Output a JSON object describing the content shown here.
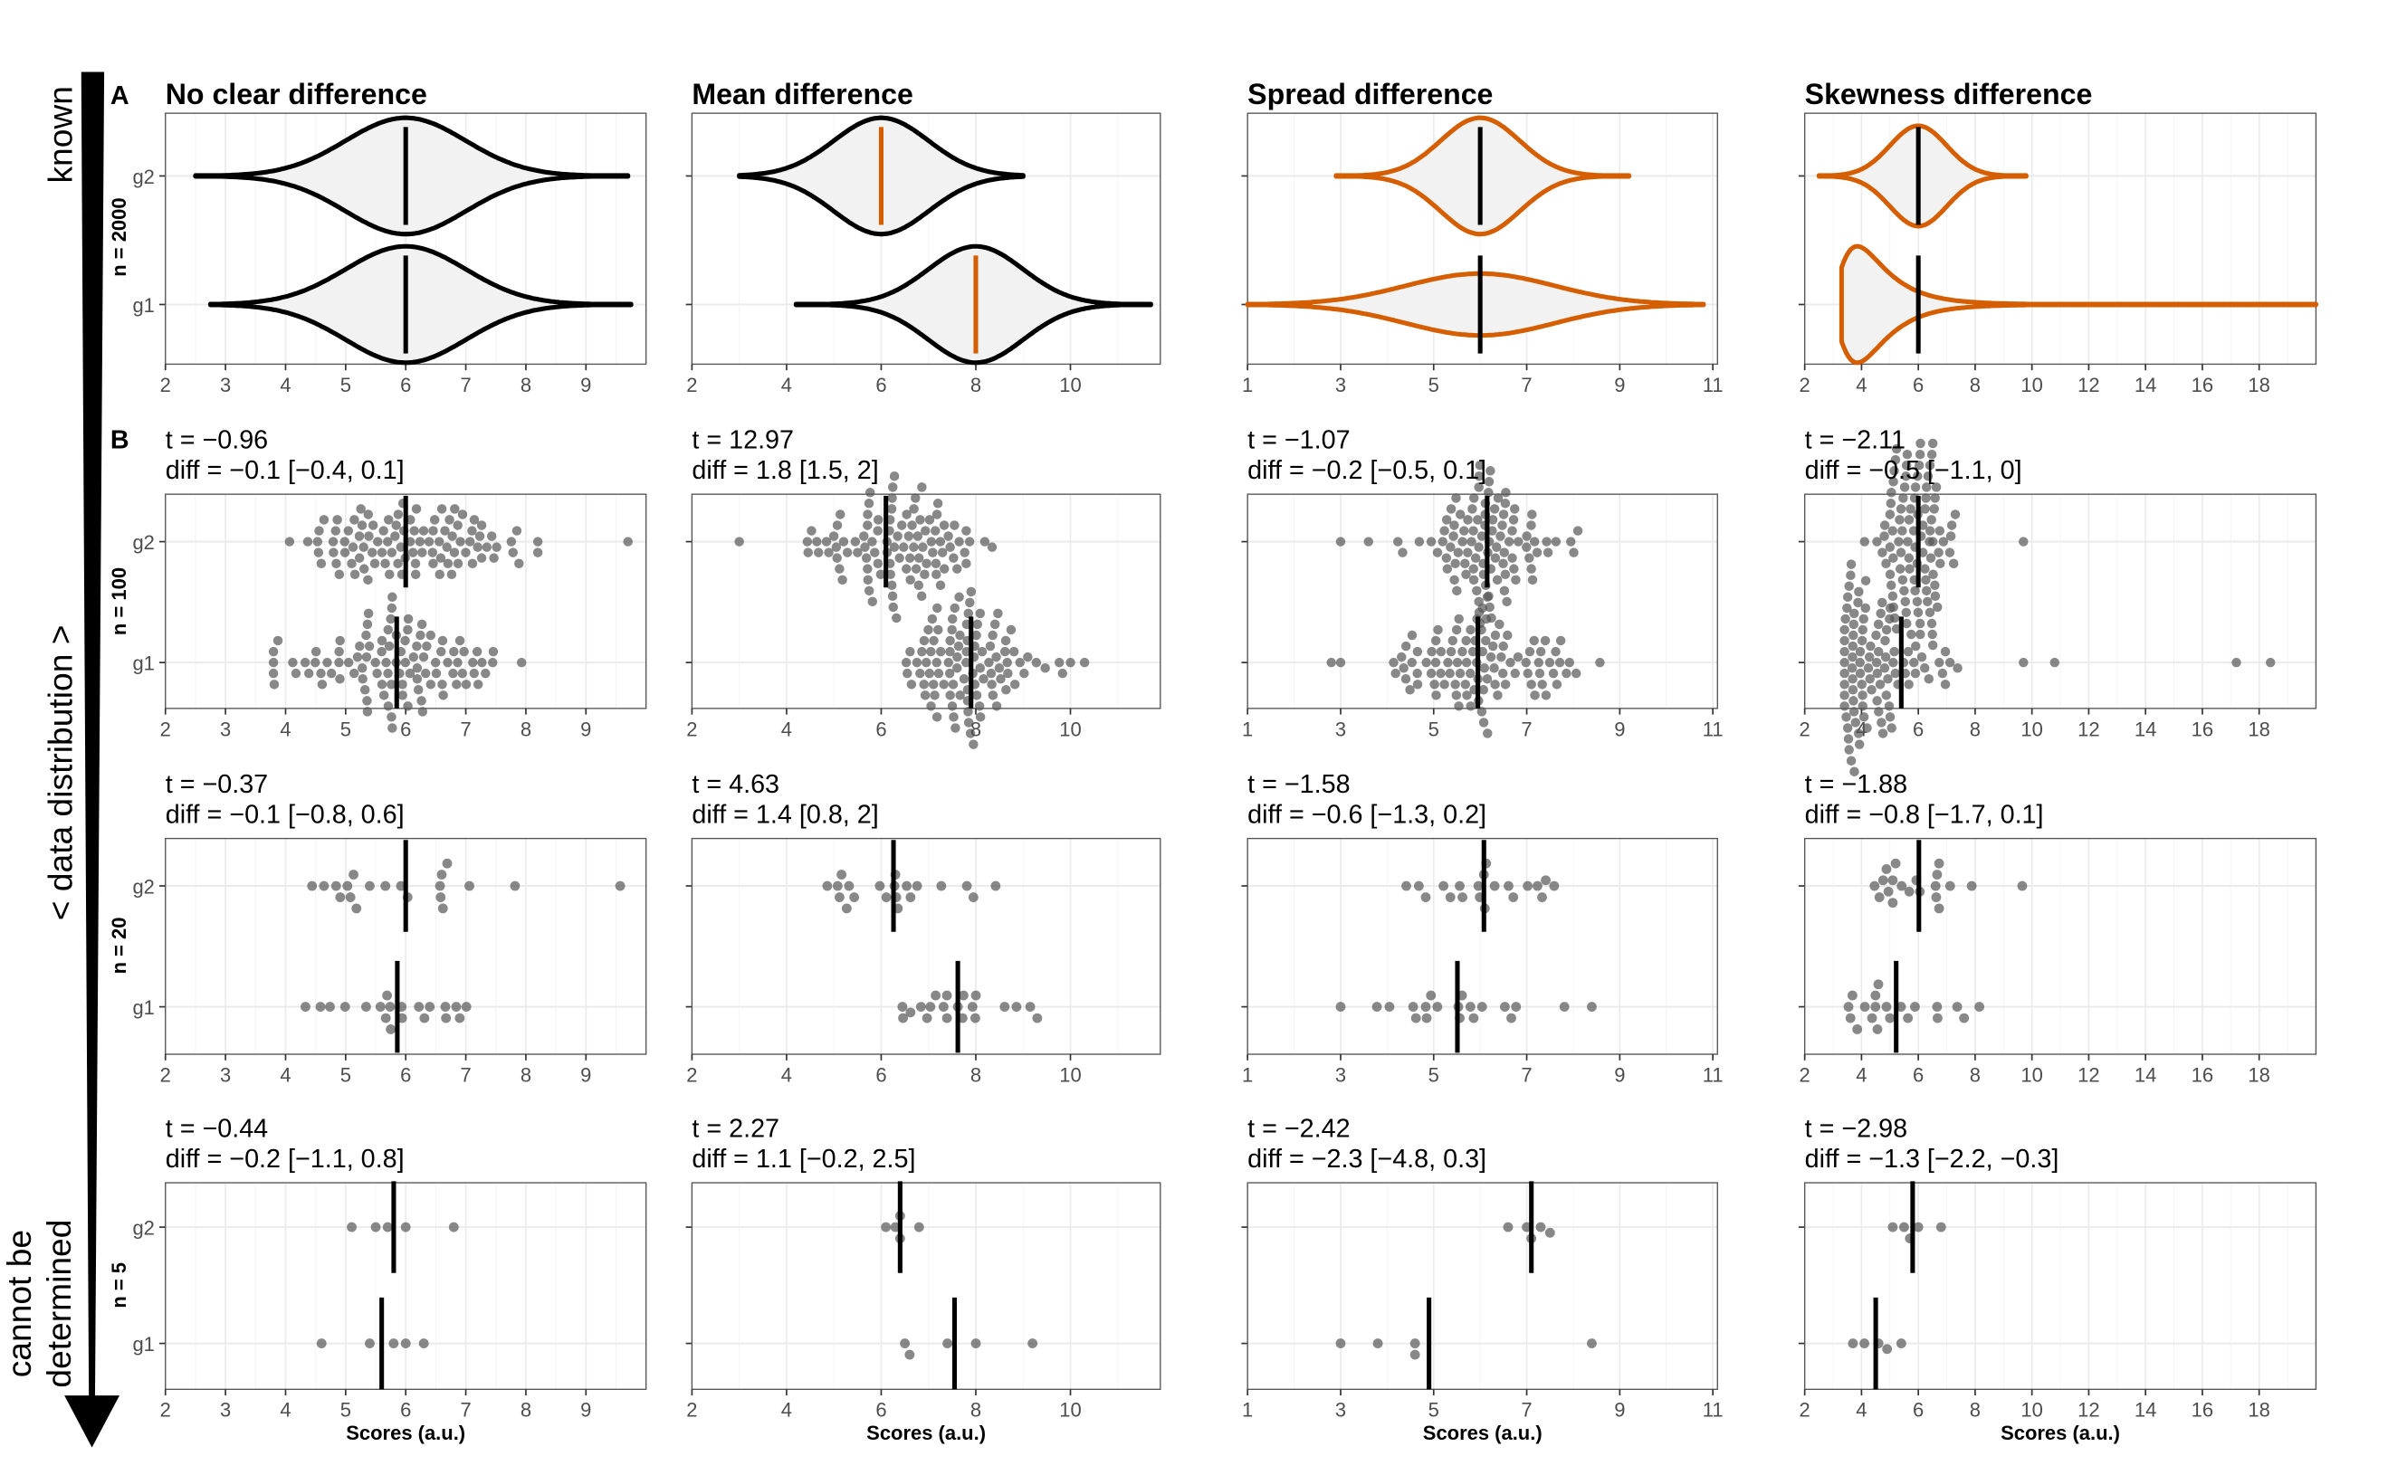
{
  "figure": {
    "side_axis": {
      "top": "known",
      "middle": "< data distribution >",
      "bottom_line1": "cannot be",
      "bottom_line2": "determined"
    },
    "panel_labels": [
      "A",
      "B"
    ],
    "x_axis_label": "Scores (a.u.)",
    "group_labels": [
      "g2",
      "g1"
    ],
    "colors": {
      "orange": "#D55E00",
      "black": "#000000",
      "violin_fill": "#F2F2F2",
      "point": "#555555"
    }
  },
  "chart_data": {
    "type": "violin + beeswarm",
    "rows": [
      {
        "label": "n = 2000",
        "kind": "violin"
      },
      {
        "label": "n = 100",
        "kind": "beeswarm"
      },
      {
        "label": "n = 20",
        "kind": "beeswarm"
      },
      {
        "label": "n = 5",
        "kind": "beeswarm"
      }
    ],
    "columns": [
      {
        "title": "No clear difference",
        "xlim": [
          2,
          10
        ],
        "ticks": [
          2,
          3,
          4,
          5,
          6,
          7,
          8,
          9
        ],
        "outline": {
          "g2": "#000000",
          "g1": "#000000"
        },
        "mean_line": "#000000",
        "population": {
          "g2": {
            "dist": "normal",
            "mean": 6,
            "sd": 1.0,
            "range": [
              2.5,
              9.7
            ]
          },
          "g1": {
            "dist": "normal",
            "mean": 6,
            "sd": 1.0,
            "range": [
              2.75,
              9.75
            ]
          }
        },
        "samples": [
          {
            "t": "t = −0.96",
            "diff": "diff = −0.1 [−0.4, 0.1]",
            "g2": {
              "n": 100,
              "mean": 6.0,
              "sd": 0.95,
              "range": [
                3.8,
                8.2
              ],
              "extra": [
                9.7
              ]
            },
            "g1": {
              "n": 100,
              "mean": 5.85,
              "sd": 0.9,
              "range": [
                3.8,
                8.2
              ],
              "extra": []
            }
          },
          {
            "t": "t = −0.37",
            "diff": "diff = −0.1 [−0.8, 0.6]",
            "g2": {
              "mean": 6.0,
              "values": [
                4.44,
                4.64,
                4.84,
                4.91,
                5.03,
                5.08,
                5.13,
                5.18,
                5.4,
                5.66,
                5.92,
                6.03,
                6.57,
                6.58,
                6.6,
                6.62,
                6.69,
                7.06,
                7.82,
                9.57
              ]
            },
            "g1": {
              "mean": 5.86,
              "values": [
                4.33,
                4.58,
                4.74,
                4.99,
                5.34,
                5.58,
                5.67,
                5.69,
                5.74,
                5.75,
                5.93,
                5.94,
                6.22,
                6.31,
                6.4,
                6.66,
                6.67,
                6.84,
                6.9,
                7.01
              ]
            }
          },
          {
            "t": "t = −0.44",
            "diff": "diff = −0.2 [−1.1, 0.8]",
            "g2": {
              "mean": 5.8,
              "values": [
                5.1,
                5.5,
                5.7,
                6.0,
                6.8
              ]
            },
            "g1": {
              "mean": 5.6,
              "values": [
                4.6,
                5.4,
                5.8,
                6.0,
                6.3
              ]
            }
          }
        ]
      },
      {
        "title": "Mean difference",
        "xlim": [
          2,
          11.9
        ],
        "ticks": [
          2,
          4,
          6,
          8,
          10
        ],
        "outline": {
          "g2": "#000000",
          "g1": "#000000"
        },
        "mean_line": "#D55E00",
        "population": {
          "g2": {
            "dist": "normal",
            "mean": 6,
            "sd": 1.0,
            "range": [
              3.0,
              9.0
            ]
          },
          "g1": {
            "dist": "normal",
            "mean": 8,
            "sd": 1.0,
            "range": [
              4.2,
              11.7
            ]
          }
        },
        "samples": [
          {
            "t": "t = 12.97",
            "diff": "diff = 1.8 [1.5, 2]",
            "g2": {
              "n": 100,
              "mean": 6.1,
              "sd": 0.85,
              "range": [
                4.0,
                8.5
              ],
              "extra": [
                3.0
              ]
            },
            "g1": {
              "n": 100,
              "mean": 7.9,
              "sd": 0.85,
              "range": [
                5.8,
                10.0
              ],
              "extra": [
                10.3
              ]
            }
          },
          {
            "t": "t = 4.63",
            "diff": "diff = 1.4 [0.8, 2]",
            "g2": {
              "mean": 6.26,
              "values": [
                4.86,
                5.08,
                5.12,
                5.16,
                5.27,
                5.32,
                5.43,
                5.97,
                6.11,
                6.28,
                6.3,
                6.32,
                6.35,
                6.54,
                6.62,
                6.76,
                7.27,
                7.81,
                7.95,
                8.42
              ]
            },
            "g1": {
              "mean": 7.62,
              "values": [
                6.45,
                6.46,
                6.62,
                6.84,
                6.97,
                7.04,
                7.15,
                7.32,
                7.39,
                7.39,
                7.62,
                7.72,
                7.74,
                7.93,
                7.99,
                8.0,
                8.61,
                8.86,
                9.15,
                9.3
              ]
            }
          },
          {
            "t": "t = 2.27",
            "diff": "diff = 1.1 [−0.2, 2.5]",
            "g2": {
              "mean": 6.4,
              "values": [
                6.1,
                6.3,
                6.4,
                6.4,
                6.8
              ]
            },
            "g1": {
              "mean": 7.55,
              "values": [
                6.5,
                6.6,
                7.4,
                8.0,
                9.2
              ]
            }
          }
        ]
      },
      {
        "title": "Spread difference",
        "xlim": [
          1,
          11.1
        ],
        "ticks": [
          1,
          3,
          5,
          7,
          9,
          11
        ],
        "outline": {
          "g2": "#D55E00",
          "g1": "#D55E00"
        },
        "mean_line": "#000000",
        "population": {
          "g2": {
            "dist": "normal",
            "mean": 6,
            "sd": 0.85,
            "range": [
              2.9,
              9.2
            ]
          },
          "g1": {
            "dist": "normal",
            "mean": 6,
            "sd": 1.6,
            "range": [
              1.0,
              10.8
            ]
          }
        },
        "samples": [
          {
            "t": "t = −1.07",
            "diff": "diff = −0.2 [−0.5, 0.1]",
            "g2": {
              "n": 100,
              "mean": 6.15,
              "sd": 0.75,
              "range": [
                4.0,
                8.1
              ],
              "extra": [
                3.0,
                3.6
              ]
            },
            "g1": {
              "n": 100,
              "mean": 5.95,
              "sd": 1.05,
              "range": [
                3.3,
                9.1
              ],
              "extra": [
                2.8,
                3.0
              ]
            }
          },
          {
            "t": "t = −1.58",
            "diff": "diff = −0.6 [−1.3, 0.2]",
            "g2": {
              "mean": 6.08,
              "values": [
                4.41,
                4.68,
                4.83,
                5.21,
                5.36,
                5.56,
                5.62,
                5.96,
                5.99,
                6.08,
                6.1,
                6.13,
                6.31,
                6.61,
                6.71,
                7.02,
                7.23,
                7.33,
                7.41,
                7.59
              ]
            },
            "g1": {
              "mean": 5.51,
              "values": [
                3.0,
                3.78,
                4.05,
                4.56,
                4.62,
                4.83,
                4.85,
                4.94,
                5.08,
                5.53,
                5.56,
                5.61,
                5.79,
                5.86,
                6.04,
                6.53,
                6.67,
                6.77,
                7.81,
                8.4
              ]
            }
          },
          {
            "t": "t = −2.42",
            "diff": "diff = −2.3 [−4.8, 0.3]",
            "g2": {
              "mean": 7.1,
              "values": [
                6.6,
                7.0,
                7.1,
                7.3,
                7.5
              ]
            },
            "g1": {
              "mean": 4.9,
              "values": [
                3.0,
                3.8,
                4.6,
                4.6,
                8.4
              ]
            }
          }
        ]
      },
      {
        "title": "Skewness difference",
        "xlim": [
          2,
          20
        ],
        "ticks": [
          2,
          4,
          6,
          8,
          10,
          12,
          14,
          16,
          18
        ],
        "outline": {
          "g2": "#D55E00",
          "g1": "#D55E00"
        },
        "mean_line": "#000000",
        "population": {
          "g2": {
            "dist": "normal",
            "mean": 6,
            "sd": 1.0,
            "range": [
              2.5,
              9.8
            ]
          },
          "g1": {
            "dist": "shifted-lognormal",
            "loc": 2.5,
            "mu": 0.6,
            "sigma": 0.55,
            "mean": 6,
            "range": [
              3.3,
              20
            ]
          }
        },
        "samples": [
          {
            "t": "t = −2.11",
            "diff": "diff = −0.5 [−1.1, 0]",
            "g2": {
              "n": 100,
              "mean": 6.0,
              "sd": 0.7,
              "range": [
                3.8,
                8.1
              ],
              "extra": [
                9.7
              ]
            },
            "g1": {
              "n": 100,
              "mean": 5.4,
              "dist": "shifted-lognormal",
              "loc": 2.5,
              "mu": 0.6,
              "sigma": 0.5,
              "range": [
                3.4,
                8.9
              ],
              "extra": [
                9.7,
                10.8,
                17.2,
                18.4
              ]
            }
          },
          {
            "t": "t = −1.88",
            "diff": "diff = −0.8 [−1.7, 0.1]",
            "g2": {
              "mean": 6.02,
              "values": [
                4.46,
                4.63,
                4.76,
                4.88,
                4.95,
                5.1,
                5.1,
                5.2,
                5.41,
                5.68,
                5.93,
                6.05,
                6.61,
                6.63,
                6.66,
                6.73,
                6.73,
                7.12,
                7.88,
                9.66
              ]
            },
            "g1": {
              "mean": 5.22,
              "values": [
                3.54,
                3.61,
                3.68,
                3.85,
                4.12,
                4.37,
                4.49,
                4.49,
                4.56,
                4.59,
                4.88,
                5.0,
                5.39,
                5.63,
                5.88,
                6.66,
                6.68,
                7.37,
                7.61,
                8.15
              ]
            }
          },
          {
            "t": "t = −2.98",
            "diff": "diff = −1.3 [−2.2, −0.3]",
            "g2": {
              "mean": 5.8,
              "values": [
                5.1,
                5.5,
                5.7,
                6.0,
                6.8
              ]
            },
            "g1": {
              "mean": 4.5,
              "values": [
                3.7,
                4.1,
                4.6,
                4.9,
                5.4
              ]
            }
          }
        ]
      }
    ]
  }
}
